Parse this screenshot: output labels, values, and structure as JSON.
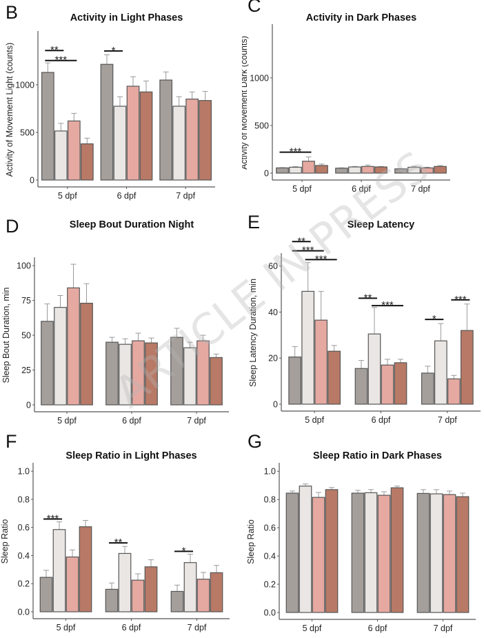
{
  "watermark": "ARTICLE IN PRESS",
  "colors": [
    "#a59f9c",
    "#e9e6e4",
    "#e5a9a1",
    "#b87a66"
  ],
  "chart_data": [
    {
      "panel": "B",
      "type": "bar",
      "title": "Activity in Light Phases",
      "ylabel": "Activity of Movement Light (counts)",
      "xlabel": "",
      "categories": [
        "5 dpf",
        "6 dpf",
        "7 dpf"
      ],
      "ylim": [
        0,
        1550
      ],
      "yticks": [
        0,
        500,
        1000
      ],
      "tick_labels": [
        "0",
        "500",
        "1000"
      ],
      "series": [
        {
          "values": [
            1130,
            1215,
            1050
          ],
          "err_upper": [
            1230,
            1315,
            1135
          ]
        },
        {
          "values": [
            515,
            775,
            775
          ],
          "err_upper": [
            595,
            875,
            875
          ]
        },
        {
          "values": [
            620,
            985,
            850
          ],
          "err_upper": [
            700,
            1085,
            925
          ]
        },
        {
          "values": [
            380,
            925,
            835
          ],
          "err_upper": [
            440,
            1040,
            930
          ]
        }
      ],
      "significance": [
        {
          "group": 0,
          "from": 0,
          "to": 1,
          "label": "**",
          "y": 1360
        },
        {
          "group": 0,
          "from": 0,
          "to": 2,
          "label": "***",
          "y": 1255
        },
        {
          "group": 1,
          "from": 0,
          "to": 1,
          "label": "*",
          "y": 1355
        }
      ]
    },
    {
      "panel": "C",
      "type": "bar",
      "title": "Activity in Dark Phases",
      "ylabel": "Activity of Movement Dark (counts)",
      "xlabel": "",
      "categories": [
        "5 dpf",
        "6 dpf",
        "7 dpf"
      ],
      "ylim": [
        0,
        1550
      ],
      "yticks": [
        0,
        500,
        1000
      ],
      "tick_labels": [
        "0",
        "500",
        "1000"
      ],
      "series": [
        {
          "values": [
            55,
            52,
            45
          ],
          "err_upper": [
            58,
            56,
            48
          ]
        },
        {
          "values": [
            62,
            65,
            62
          ],
          "err_upper": [
            68,
            70,
            72
          ]
        },
        {
          "values": [
            125,
            70,
            55
          ],
          "err_upper": [
            170,
            85,
            62
          ]
        },
        {
          "values": [
            80,
            65,
            70
          ],
          "err_upper": [
            95,
            70,
            80
          ]
        }
      ],
      "significance": [
        {
          "group": 0,
          "from": 0,
          "to": 2,
          "label": "***",
          "y": 220
        }
      ]
    },
    {
      "panel": "D",
      "type": "bar",
      "title": "Sleep Bout Duration Night",
      "ylabel": "Sleep Bout Duration, min",
      "xlabel": "",
      "categories": [
        "5 dpf",
        "6 dpf",
        "7 dpf"
      ],
      "ylim": [
        0,
        105
      ],
      "yticks": [
        0,
        25,
        50,
        75,
        100
      ],
      "tick_labels": [
        "0",
        "25",
        "50",
        "75",
        "100"
      ],
      "series": [
        {
          "values": [
            60,
            45,
            48.5
          ],
          "err_upper": [
            72.5,
            48.5,
            55
          ]
        },
        {
          "values": [
            70,
            43.5,
            41
          ],
          "err_upper": [
            78.5,
            47.5,
            45
          ]
        },
        {
          "values": [
            84,
            46,
            46
          ],
          "err_upper": [
            101,
            51.5,
            50
          ]
        },
        {
          "values": [
            73,
            44.5,
            34
          ],
          "err_upper": [
            87,
            48,
            36.5
          ]
        }
      ],
      "significance": []
    },
    {
      "panel": "E",
      "type": "bar",
      "title": "Sleep Latency",
      "ylabel": "Sleep Latency Duration, min",
      "xlabel": "",
      "categories": [
        "5 dpf",
        "6 dpf",
        "7 dpf"
      ],
      "ylim": [
        0,
        65
      ],
      "yticks": [
        0,
        20,
        40,
        60
      ],
      "tick_labels": [
        "0",
        "20",
        "40",
        "60"
      ],
      "series": [
        {
          "values": [
            20.5,
            15.5,
            13.5
          ],
          "err_upper": [
            25,
            19,
            16.5
          ]
        },
        {
          "values": [
            49,
            30.5,
            27.5
          ],
          "err_upper": [
            61.5,
            42,
            35
          ]
        },
        {
          "values": [
            36.5,
            17,
            11
          ],
          "err_upper": [
            49,
            19.5,
            12.5
          ]
        },
        {
          "values": [
            23,
            18,
            32
          ],
          "err_upper": [
            25.5,
            19.5,
            43.5
          ]
        }
      ],
      "significance": [
        {
          "group": 0,
          "from": 0,
          "to": 1,
          "label": "**",
          "y": 70.6
        },
        {
          "group": 0,
          "from": 0,
          "to": 2,
          "label": "***",
          "y": 66.6
        },
        {
          "group": 0,
          "from": 1,
          "to": 3,
          "label": "***",
          "y": 62.8
        },
        {
          "group": 1,
          "from": 0,
          "to": 1,
          "label": "**",
          "y": 46
        },
        {
          "group": 1,
          "from": 1,
          "to": 3,
          "label": "***",
          "y": 42.8
        },
        {
          "group": 2,
          "from": 0,
          "to": 1,
          "label": "*",
          "y": 36.8
        },
        {
          "group": 2,
          "from": 2,
          "to": 3,
          "label": "***",
          "y": 45.3
        }
      ]
    },
    {
      "panel": "F",
      "type": "bar",
      "title": "Sleep Ratio in Light Phases",
      "ylabel": "Sleep Ratio",
      "xlabel": "",
      "categories": [
        "5 dpf",
        "6 dpf",
        "7 dpf"
      ],
      "ylim": [
        0,
        1.05
      ],
      "yticks": [
        0,
        0.2,
        0.4,
        0.6,
        0.8,
        1.0
      ],
      "tick_labels": [
        "0.0",
        "0.2",
        "0.4",
        "0.6",
        "0.8",
        "1.0"
      ],
      "series": [
        {
          "values": [
            0.245,
            0.16,
            0.145
          ],
          "err_upper": [
            0.295,
            0.205,
            0.19
          ]
        },
        {
          "values": [
            0.585,
            0.415,
            0.35
          ],
          "err_upper": [
            0.64,
            0.465,
            0.41
          ]
        },
        {
          "values": [
            0.39,
            0.225,
            0.232
          ],
          "err_upper": [
            0.44,
            0.27,
            0.28
          ]
        },
        {
          "values": [
            0.605,
            0.32,
            0.278
          ],
          "err_upper": [
            0.65,
            0.37,
            0.33
          ]
        }
      ],
      "significance": [
        {
          "group": 0,
          "from": 0,
          "to": 1,
          "label": "***",
          "y": 0.66
        },
        {
          "group": 1,
          "from": 0,
          "to": 1,
          "label": "**",
          "y": 0.49
        },
        {
          "group": 2,
          "from": 0,
          "to": 1,
          "label": "*",
          "y": 0.43
        }
      ]
    },
    {
      "panel": "G",
      "type": "bar",
      "title": "Sleep Ratio in Dark Phases",
      "ylabel": "Sleep Ratio",
      "xlabel": "",
      "categories": [
        "5 dpf",
        "6 dpf",
        "7 dpf"
      ],
      "ylim": [
        0,
        1.05
      ],
      "yticks": [
        0,
        0.2,
        0.4,
        0.6,
        0.8,
        1.0
      ],
      "tick_labels": [
        "0.0",
        "0.2",
        "0.4",
        "0.6",
        "0.8",
        "1.0"
      ],
      "series": [
        {
          "values": [
            0.845,
            0.845,
            0.843
          ],
          "err_upper": [
            0.86,
            0.865,
            0.87
          ]
        },
        {
          "values": [
            0.895,
            0.848,
            0.84
          ],
          "err_upper": [
            0.91,
            0.87,
            0.87
          ]
        },
        {
          "values": [
            0.815,
            0.83,
            0.835
          ],
          "err_upper": [
            0.85,
            0.855,
            0.86
          ]
        },
        {
          "values": [
            0.87,
            0.883,
            0.82
          ],
          "err_upper": [
            0.885,
            0.895,
            0.845
          ]
        }
      ],
      "significance": []
    }
  ]
}
